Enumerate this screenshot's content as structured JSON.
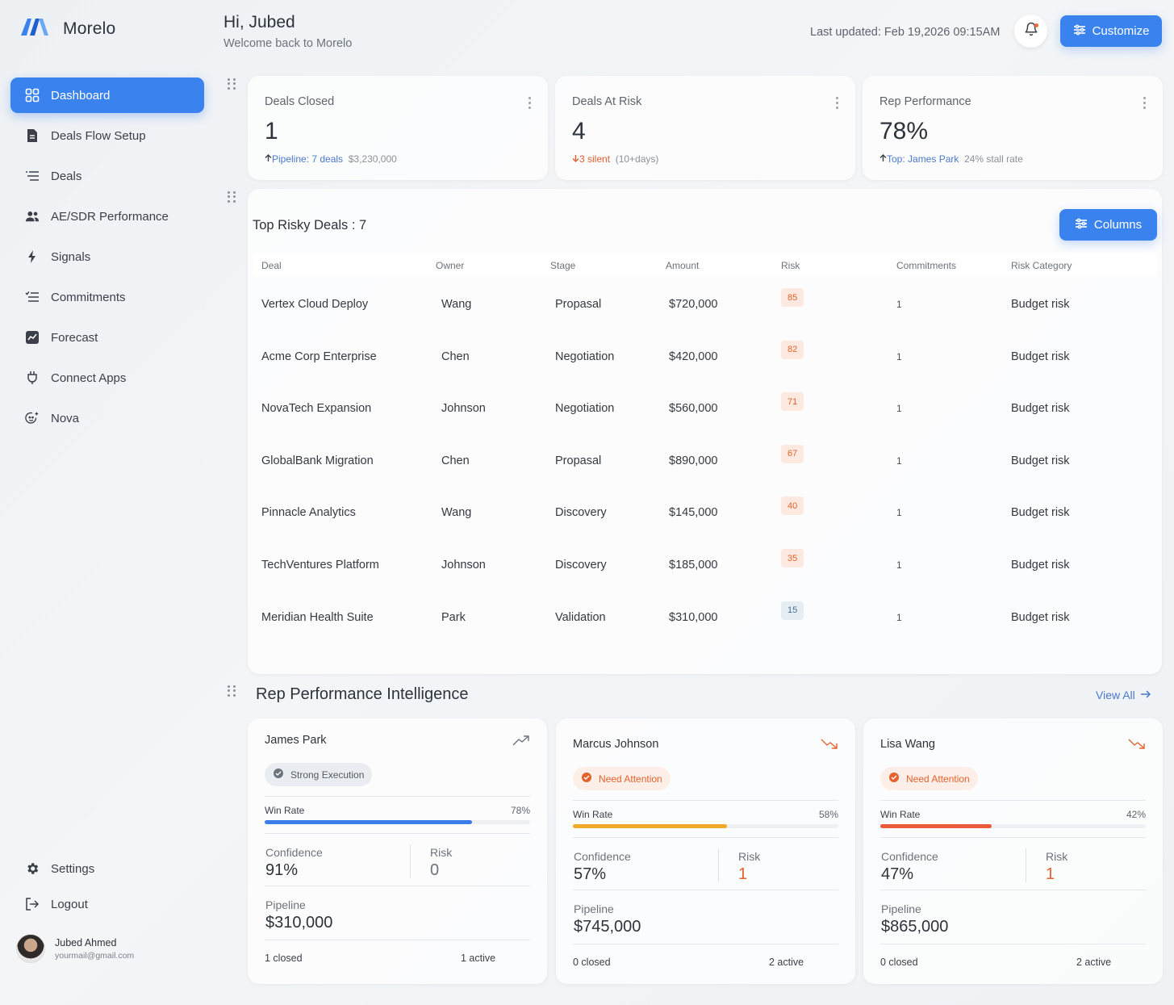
{
  "app": {
    "name": "Morelo"
  },
  "sidebar": {
    "items": [
      {
        "label": "Dashboard",
        "icon": "grid-icon",
        "active": true
      },
      {
        "label": "Deals Flow Setup",
        "icon": "document-icon"
      },
      {
        "label": "Deals",
        "icon": "list-icon"
      },
      {
        "label": "AE/SDR Performance",
        "icon": "users-icon"
      },
      {
        "label": "Signals",
        "icon": "bolt-icon"
      },
      {
        "label": "Commitments",
        "icon": "checklist-icon"
      },
      {
        "label": "Forecast",
        "icon": "chart-icon"
      },
      {
        "label": "Connect Apps",
        "icon": "plug-icon"
      },
      {
        "label": "Nova",
        "icon": "sparkle-icon"
      }
    ],
    "bottom": [
      {
        "label": "Settings",
        "icon": "gear-icon"
      },
      {
        "label": "Logout",
        "icon": "logout-icon"
      }
    ],
    "user": {
      "name": "Jubed Ahmed",
      "email": "yourmail@gmail.com"
    }
  },
  "header": {
    "greeting": "Hi, Jubed",
    "subtitle": "Welcome back to Morelo",
    "last_updated": "Last updated: Feb 19,2026 09:15AM",
    "customize_label": "Customize"
  },
  "stats": [
    {
      "title": "Deals Closed",
      "value": "1",
      "trend": "up",
      "highlight": "Pipeline: 7 deals",
      "detail": "$3,230,000"
    },
    {
      "title": "Deals At Risk",
      "value": "4",
      "trend": "down",
      "highlight": "3 silent",
      "detail": "(10+days)"
    },
    {
      "title": "Rep Performance",
      "value": "78%",
      "trend": "up",
      "highlight": "Top: James Park",
      "detail": "24% stall rate"
    }
  ],
  "risky_deals": {
    "title": "Top Risky Deals : 7",
    "columns_label": "Columns",
    "headers": [
      "Deal",
      "Owner",
      "Stage",
      "Amount",
      "Risk",
      "Commitments",
      "Risk Category"
    ],
    "rows": [
      {
        "deal": "Vertex Cloud Deploy",
        "owner": "Wang",
        "stage": "Propasal",
        "amount": "$720,000",
        "risk": "85",
        "commitments": "1",
        "category": "Budget risk"
      },
      {
        "deal": "Acme Corp Enterprise",
        "owner": "Chen",
        "stage": "Negotiation",
        "amount": "$420,000",
        "risk": "82",
        "commitments": "1",
        "category": "Budget risk"
      },
      {
        "deal": "NovaTech Expansion",
        "owner": "Johnson",
        "stage": "Negotiation",
        "amount": "$560,000",
        "risk": "71",
        "commitments": "1",
        "category": "Budget risk"
      },
      {
        "deal": "GlobalBank Migration",
        "owner": "Chen",
        "stage": "Propasal",
        "amount": "$890,000",
        "risk": "67",
        "commitments": "1",
        "category": "Budget risk"
      },
      {
        "deal": "Pinnacle Analytics",
        "owner": "Wang",
        "stage": "Discovery",
        "amount": "$145,000",
        "risk": "40",
        "commitments": "1",
        "category": "Budget risk"
      },
      {
        "deal": "TechVentures Platform",
        "owner": "Johnson",
        "stage": "Discovery",
        "amount": "$185,000",
        "risk": "35",
        "commitments": "1",
        "category": "Budget risk"
      },
      {
        "deal": "Meridian Health Suite",
        "owner": "Park",
        "stage": "Validation",
        "amount": "$310,000",
        "risk": "15",
        "commitments": "1",
        "category": "Budget risk"
      }
    ],
    "risk_colors": {
      "high": "#e4622d",
      "high_bg": "#fde9df",
      "low": "#3f6f8f",
      "low_bg": "#e6eef3"
    }
  },
  "rep_intel": {
    "title": "Rep Performance Intelligence",
    "view_all": "View All",
    "reps": [
      {
        "name": "James Park",
        "trend": "up",
        "status": "Strong Execution",
        "status_kind": "good",
        "win_rate_label": "Win Rate",
        "win_rate": "78%",
        "win_rate_fraction": 0.78,
        "bar_color": "#3a7de8",
        "confidence_label": "Confidence",
        "confidence": "91%",
        "risk_label": "Risk",
        "risk": "0",
        "pipeline_label": "Pipeline",
        "pipeline": "$310,000",
        "closed": "1 closed",
        "active": "1 active"
      },
      {
        "name": "Marcus Johnson",
        "trend": "down",
        "status": "Need Attention",
        "status_kind": "warn",
        "win_rate_label": "Win Rate",
        "win_rate": "58%",
        "win_rate_fraction": 0.58,
        "bar_color": "#f0aa2a",
        "confidence_label": "Confidence",
        "confidence": "57%",
        "risk_label": "Risk",
        "risk": "1",
        "pipeline_label": "Pipeline",
        "pipeline": "$745,000",
        "closed": "0 closed",
        "active": "2 active"
      },
      {
        "name": "Lisa Wang",
        "trend": "down",
        "status": "Need Attention",
        "status_kind": "warn",
        "win_rate_label": "Win Rate",
        "win_rate": "42%",
        "win_rate_fraction": 0.42,
        "bar_color": "#e85a3a",
        "confidence_label": "Confidence",
        "confidence": "47%",
        "risk_label": "Risk",
        "risk": "1",
        "pipeline_label": "Pipeline",
        "pipeline": "$865,000",
        "closed": "0 closed",
        "active": "2 active"
      }
    ]
  }
}
